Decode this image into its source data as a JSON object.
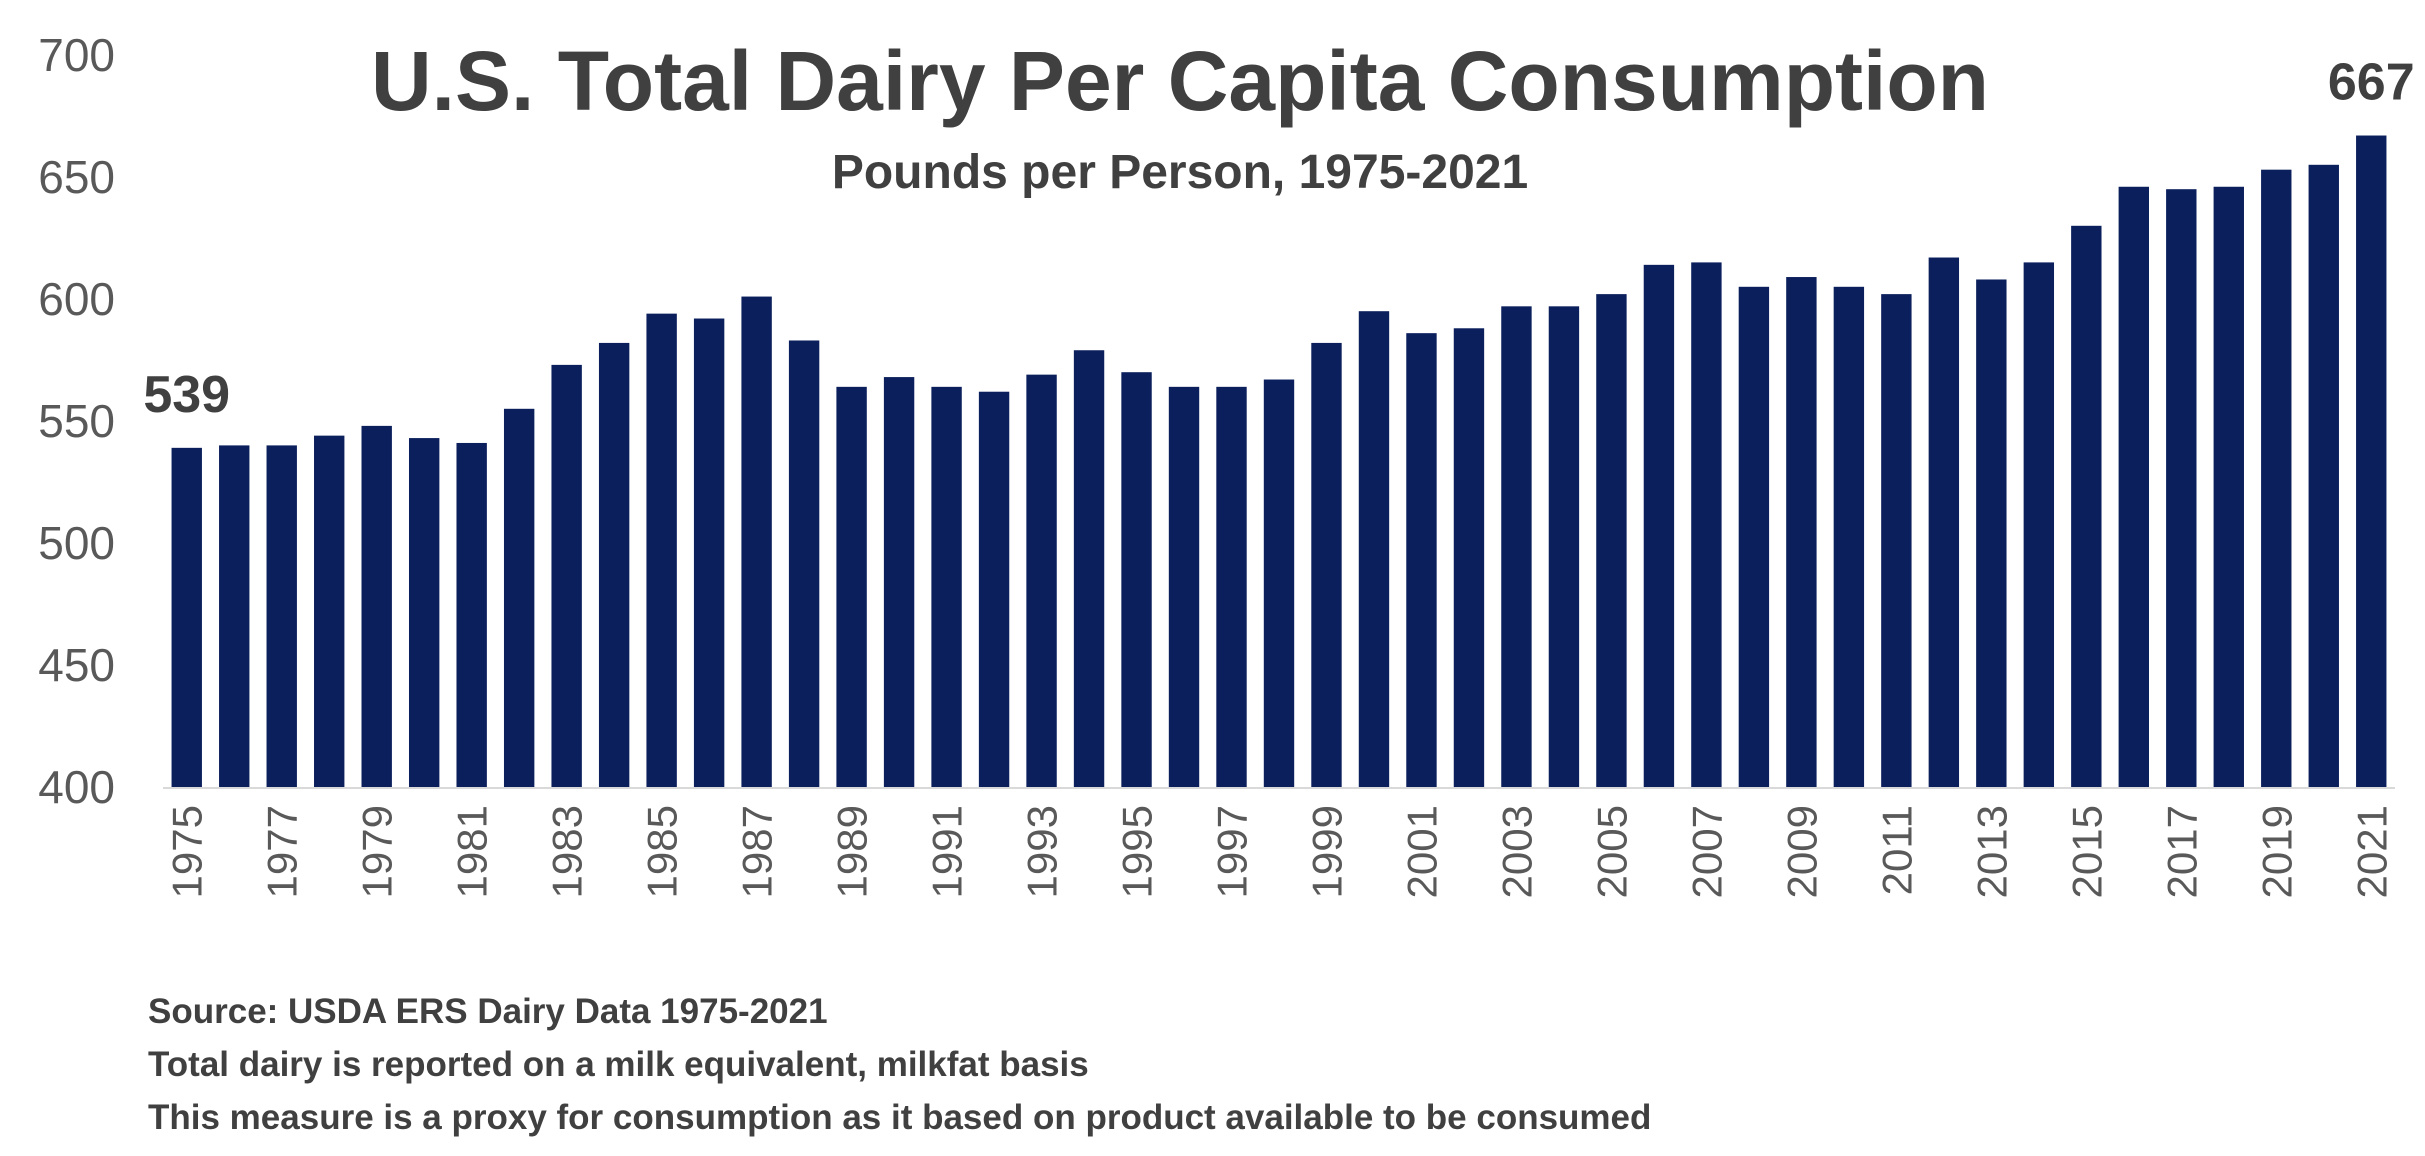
{
  "chart_data": {
    "type": "bar",
    "title": "U.S. Total Dairy Per Capita Consumption",
    "subtitle": "Pounds per Person, 1975-2021",
    "xlabel": "",
    "ylabel": "",
    "ylim": [
      400,
      700
    ],
    "yticks": [
      "400",
      "450",
      "500",
      "550",
      "600",
      "650",
      "700"
    ],
    "xtick_labels": [
      "1975",
      "1977",
      "1979",
      "1981",
      "1983",
      "1985",
      "1987",
      "1989",
      "1991",
      "1993",
      "1995",
      "1997",
      "1999",
      "2001",
      "2003",
      "2005",
      "2007",
      "2009",
      "2011",
      "2013",
      "2015",
      "2017",
      "2019",
      "2021"
    ],
    "grid": false,
    "legend": "none",
    "bar_color": "#0b1f5c",
    "categories": [
      "1975",
      "1976",
      "1977",
      "1978",
      "1979",
      "1980",
      "1981",
      "1982",
      "1983",
      "1984",
      "1985",
      "1986",
      "1987",
      "1988",
      "1989",
      "1990",
      "1991",
      "1992",
      "1993",
      "1994",
      "1995",
      "1996",
      "1997",
      "1998",
      "1999",
      "2000",
      "2001",
      "2002",
      "2003",
      "2004",
      "2005",
      "2006",
      "2007",
      "2008",
      "2009",
      "2010",
      "2011",
      "2012",
      "2013",
      "2014",
      "2015",
      "2016",
      "2017",
      "2018",
      "2019",
      "2020",
      "2021"
    ],
    "values": [
      539,
      540,
      540,
      544,
      548,
      543,
      541,
      555,
      573,
      582,
      594,
      592,
      601,
      583,
      564,
      568,
      564,
      562,
      569,
      579,
      570,
      564,
      564,
      567,
      582,
      595,
      586,
      588,
      597,
      597,
      602,
      614,
      615,
      605,
      609,
      605,
      602,
      617,
      608,
      615,
      630,
      646,
      645,
      646,
      653,
      655,
      667
    ],
    "data_labels": [
      {
        "category": "1975",
        "text": "539"
      },
      {
        "category": "2021",
        "text": "667"
      }
    ]
  },
  "footnotes": {
    "source": "Source: USDA ERS Dairy Data 1975-2021",
    "basis": "Total dairy is reported on a milk equivalent, milkfat basis",
    "proxy": "This measure is a proxy for consumption as it based on product available to be consumed"
  }
}
